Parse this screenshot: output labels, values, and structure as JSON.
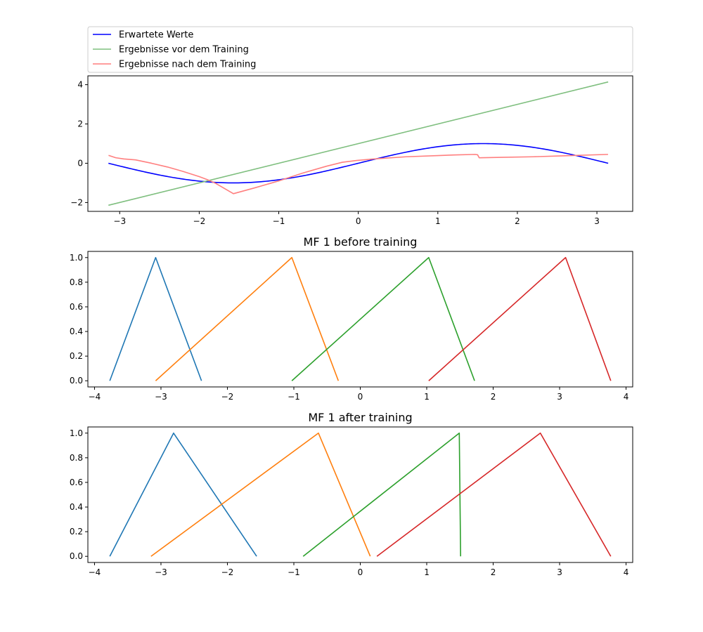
{
  "chart_data": [
    {
      "type": "line",
      "title": "",
      "xlabel": "",
      "ylabel": "",
      "xlim": [
        -3.4,
        3.45
      ],
      "ylim": [
        -2.45,
        4.45
      ],
      "xticks": [
        -3,
        -2,
        -1,
        0,
        1,
        2,
        3
      ],
      "yticks": [
        -2,
        0,
        2,
        4
      ],
      "grid": false,
      "legend": {
        "placement": "above-axes"
      },
      "series": [
        {
          "name": "Erwartete Werte",
          "color": "#0000ff",
          "curve": "sin",
          "domain": [
            -3.14159,
            3.14159
          ]
        },
        {
          "name": "Ergebnisse vor dem Training",
          "color": "#7fbf7f",
          "x": [
            -3.14159,
            3.14159
          ],
          "y": [
            -2.14,
            4.14
          ]
        },
        {
          "name": "Ergebnisse nach dem Training",
          "color": "#ff7f7f",
          "x": [
            -3.14,
            -3.05,
            -2.95,
            -2.8,
            -2.6,
            -2.4,
            -2.2,
            -2.0,
            -1.9,
            -1.8,
            -1.57,
            -1.3,
            -1.0,
            -0.7,
            -0.4,
            -0.2,
            0.0,
            0.2,
            0.6,
            1.0,
            1.2,
            1.47,
            1.5,
            1.52,
            1.8,
            2.2,
            2.6,
            3.14
          ],
          "y": [
            0.4,
            0.28,
            0.22,
            0.17,
            0.0,
            -0.19,
            -0.42,
            -0.68,
            -0.83,
            -1.01,
            -1.55,
            -1.25,
            -0.9,
            -0.5,
            -0.15,
            0.05,
            0.15,
            0.22,
            0.33,
            0.39,
            0.42,
            0.45,
            0.43,
            0.28,
            0.3,
            0.33,
            0.38,
            0.45
          ]
        }
      ]
    },
    {
      "type": "line",
      "title": "MF 1 before training",
      "xlabel": "",
      "ylabel": "",
      "xlim": [
        -4.1,
        4.1
      ],
      "ylim": [
        -0.05,
        1.05
      ],
      "xticks": [
        -4,
        -3,
        -2,
        -1,
        0,
        1,
        2,
        3,
        4
      ],
      "yticks": [
        0.0,
        0.2,
        0.4,
        0.6,
        0.8,
        1.0
      ],
      "grid": false,
      "series": [
        {
          "color": "#1f77b4",
          "x": [
            -3.77,
            -3.08,
            -2.39
          ],
          "y": [
            0,
            1,
            0
          ]
        },
        {
          "color": "#ff7f0e",
          "x": [
            -3.08,
            -1.03,
            -0.33
          ],
          "y": [
            0,
            1,
            0
          ]
        },
        {
          "color": "#2ca02c",
          "x": [
            -1.03,
            1.03,
            1.72
          ],
          "y": [
            0,
            1,
            0
          ]
        },
        {
          "color": "#d62728",
          "x": [
            1.03,
            3.09,
            3.77
          ],
          "y": [
            0,
            1,
            0
          ]
        }
      ]
    },
    {
      "type": "line",
      "title": "MF 1 after training",
      "xlabel": "",
      "ylabel": "",
      "xlim": [
        -4.1,
        4.1
      ],
      "ylim": [
        -0.05,
        1.05
      ],
      "xticks": [
        -4,
        -3,
        -2,
        -1,
        0,
        1,
        2,
        3,
        4
      ],
      "yticks": [
        0.0,
        0.2,
        0.4,
        0.6,
        0.8,
        1.0
      ],
      "grid": false,
      "series": [
        {
          "color": "#1f77b4",
          "x": [
            -3.77,
            -2.81,
            -1.56
          ],
          "y": [
            0,
            1,
            0
          ]
        },
        {
          "color": "#ff7f0e",
          "x": [
            -3.15,
            -0.63,
            0.15
          ],
          "y": [
            0,
            1,
            0
          ]
        },
        {
          "color": "#2ca02c",
          "x": [
            -0.86,
            1.49,
            1.51
          ],
          "y": [
            0,
            1,
            0
          ]
        },
        {
          "color": "#d62728",
          "x": [
            0.25,
            2.71,
            3.77
          ],
          "y": [
            0,
            1,
            0
          ]
        }
      ]
    }
  ]
}
